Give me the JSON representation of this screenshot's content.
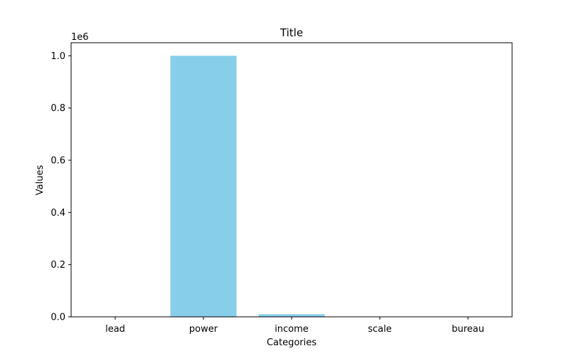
{
  "chart_data": {
    "type": "bar",
    "title": "Title",
    "xlabel": "Categories",
    "ylabel": "Values",
    "offset_label": "1e6",
    "categories": [
      "lead",
      "power",
      "income",
      "scale",
      "bureau"
    ],
    "values": [
      1000,
      1000000,
      10000,
      100,
      100
    ],
    "ylim": [
      0,
      1.05
    ],
    "yticks": [
      "0.0",
      "0.2",
      "0.4",
      "0.6",
      "0.8",
      "1.0"
    ],
    "ytick_values": [
      0,
      0.2,
      0.4,
      0.6,
      0.8,
      1.0
    ],
    "scale_divisor": 1000000,
    "bar_color": "#87CEEB",
    "grid": false,
    "legend": "none"
  }
}
